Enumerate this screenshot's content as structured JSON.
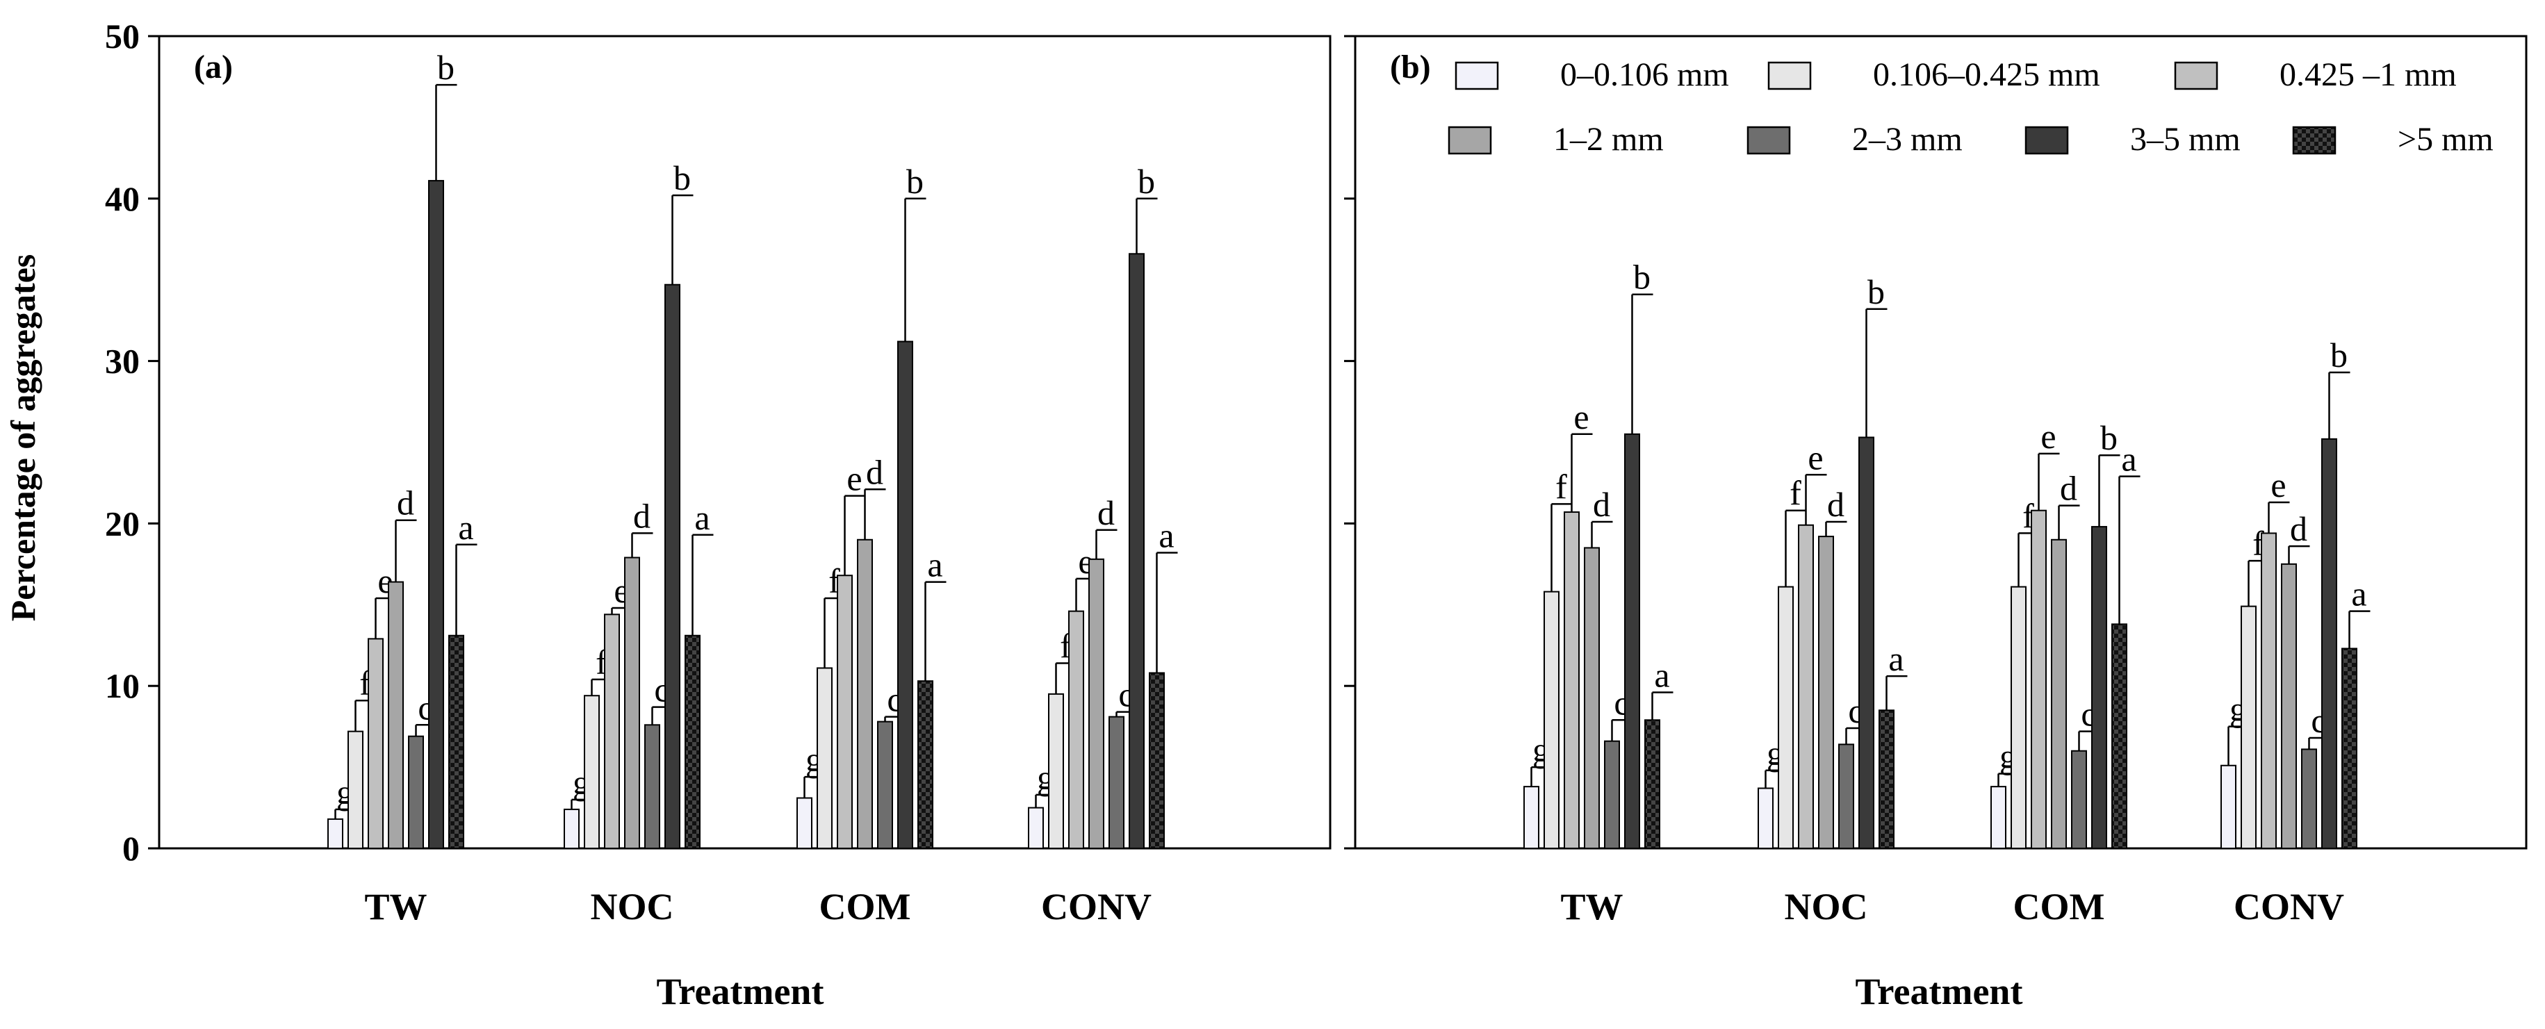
{
  "figure": {
    "ylabel": "Percentage of aggregates",
    "xlabel": "Treatment"
  },
  "legend": {
    "items": [
      {
        "label": "0–0.106 mm",
        "color": "#f2f2fa",
        "pattern": "solid"
      },
      {
        "label": "0.106–0.425 mm",
        "color": "#e6e6e6",
        "pattern": "solid"
      },
      {
        "label": "0.425 –1 mm",
        "color": "#c0c0c0",
        "pattern": "solid"
      },
      {
        "label": "1–2  mm",
        "color": "#a6a6a6",
        "pattern": "solid"
      },
      {
        "label": "2–3  mm",
        "color": "#6e6e6e",
        "pattern": "solid"
      },
      {
        "label": "3–5  mm",
        "color": "#3a3a3a",
        "pattern": "solid"
      },
      {
        "label": ">5 mm",
        "color": "#111111",
        "pattern": "checker"
      }
    ]
  },
  "chart_data": [
    {
      "type": "bar",
      "panel_label": "(a)",
      "title": "",
      "xlabel": "Treatment",
      "ylabel": "Percentage of aggregates",
      "ylim": [
        0,
        50
      ],
      "yticks": [
        0,
        10,
        20,
        30,
        40,
        50
      ],
      "categories": [
        "TW",
        "NOC",
        "COM",
        "CONV"
      ],
      "series": [
        {
          "name": "0–0.106 mm",
          "values": [
            1.8,
            2.4,
            3.1,
            2.5
          ],
          "errors": [
            0.6,
            0.6,
            1.3,
            0.8
          ],
          "letters": [
            "g",
            "g",
            "g",
            "g"
          ]
        },
        {
          "name": "0.106–0.425 mm",
          "values": [
            7.2,
            9.4,
            11.1,
            9.5
          ],
          "errors": [
            1.9,
            1.0,
            4.3,
            1.9
          ],
          "letters": [
            "f",
            "f",
            "f",
            "f"
          ]
        },
        {
          "name": "0.425 –1 mm",
          "values": [
            12.9,
            14.4,
            16.8,
            14.6
          ],
          "errors": [
            2.5,
            0.4,
            4.9,
            2.0
          ],
          "letters": [
            "e",
            "e",
            "e",
            "e"
          ]
        },
        {
          "name": "1–2  mm",
          "values": [
            16.4,
            17.9,
            19.0,
            17.8
          ],
          "errors": [
            3.8,
            1.5,
            3.1,
            1.8
          ],
          "letters": [
            "d",
            "d",
            "d",
            "d"
          ]
        },
        {
          "name": "2–3  mm",
          "values": [
            6.9,
            7.6,
            7.8,
            8.1
          ],
          "errors": [
            0.7,
            1.1,
            0.3,
            0.3
          ],
          "letters": [
            "c",
            "c",
            "c",
            "c"
          ]
        },
        {
          "name": "3–5  mm",
          "values": [
            41.1,
            34.7,
            31.2,
            36.6
          ],
          "errors": [
            5.9,
            5.5,
            8.8,
            3.4
          ],
          "letters": [
            "b",
            "b",
            "b",
            "b"
          ]
        },
        {
          "name": ">5 mm",
          "values": [
            13.1,
            13.1,
            10.3,
            10.8
          ],
          "errors": [
            5.6,
            6.2,
            6.1,
            7.4
          ],
          "letters": [
            "a",
            "a",
            "a",
            "a"
          ]
        }
      ]
    },
    {
      "type": "bar",
      "panel_label": "(b)",
      "title": "",
      "xlabel": "Treatment",
      "ylabel": "",
      "ylim": [
        0,
        50
      ],
      "yticks": [
        0,
        10,
        20,
        30,
        40,
        50
      ],
      "categories": [
        "TW",
        "NOC",
        "COM",
        "CONV"
      ],
      "series": [
        {
          "name": "0–0.106 mm",
          "values": [
            3.8,
            3.7,
            3.8,
            5.1
          ],
          "errors": [
            1.2,
            1.1,
            0.8,
            2.4
          ],
          "letters": [
            "g",
            "g",
            "g",
            "g"
          ]
        },
        {
          "name": "0.106–0.425 mm",
          "values": [
            15.8,
            16.1,
            16.1,
            14.9
          ],
          "errors": [
            5.4,
            4.7,
            3.3,
            2.8
          ],
          "letters": [
            "f",
            "f",
            "f",
            "f"
          ]
        },
        {
          "name": "0.425 –1 mm",
          "values": [
            20.7,
            19.9,
            20.8,
            19.4
          ],
          "errors": [
            4.8,
            3.1,
            3.5,
            1.9
          ],
          "letters": [
            "e",
            "e",
            "e",
            "e"
          ]
        },
        {
          "name": "1–2  mm",
          "values": [
            18.5,
            19.2,
            19.0,
            17.5
          ],
          "errors": [
            1.6,
            0.9,
            2.1,
            1.1
          ],
          "letters": [
            "d",
            "d",
            "d",
            "d"
          ]
        },
        {
          "name": "2–3  mm",
          "values": [
            6.6,
            6.4,
            6.0,
            6.1
          ],
          "errors": [
            1.3,
            1.0,
            1.2,
            0.7
          ],
          "letters": [
            "c",
            "c",
            "c",
            "c"
          ]
        },
        {
          "name": "3–5  mm",
          "values": [
            25.5,
            25.3,
            19.8,
            25.2
          ],
          "errors": [
            8.6,
            7.9,
            4.4,
            4.1
          ],
          "letters": [
            "b",
            "b",
            "b",
            "b"
          ]
        },
        {
          "name": ">5 mm",
          "values": [
            7.9,
            8.5,
            13.8,
            12.3
          ],
          "errors": [
            1.7,
            2.1,
            9.1,
            2.3
          ],
          "letters": [
            "a",
            "a",
            "a",
            "a"
          ]
        }
      ]
    }
  ]
}
